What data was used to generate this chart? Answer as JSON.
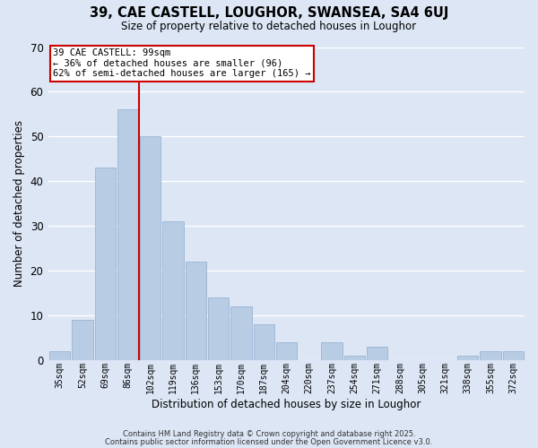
{
  "title": "39, CAE CASTELL, LOUGHOR, SWANSEA, SA4 6UJ",
  "subtitle": "Size of property relative to detached houses in Loughor",
  "xlabel": "Distribution of detached houses by size in Loughor",
  "ylabel": "Number of detached properties",
  "background_color": "#dce6f5",
  "bar_color": "#b8cce4",
  "bar_edge_color": "#9ab4d4",
  "grid_color": "#ffffff",
  "categories": [
    "35sqm",
    "52sqm",
    "69sqm",
    "86sqm",
    "102sqm",
    "119sqm",
    "136sqm",
    "153sqm",
    "170sqm",
    "187sqm",
    "204sqm",
    "220sqm",
    "237sqm",
    "254sqm",
    "271sqm",
    "288sqm",
    "305sqm",
    "321sqm",
    "338sqm",
    "355sqm",
    "372sqm"
  ],
  "values": [
    2,
    9,
    43,
    56,
    50,
    31,
    22,
    14,
    12,
    8,
    4,
    0,
    4,
    1,
    3,
    0,
    0,
    0,
    1,
    2,
    2
  ],
  "ylim": [
    0,
    70
  ],
  "yticks": [
    0,
    10,
    20,
    30,
    40,
    50,
    60,
    70
  ],
  "vline_x_index": 4,
  "vline_color": "#cc0000",
  "annotation_title": "39 CAE CASTELL: 99sqm",
  "annotation_line1": "← 36% of detached houses are smaller (96)",
  "annotation_line2": "62% of semi-detached houses are larger (165) →",
  "annotation_box_color": "#ffffff",
  "annotation_box_edge": "#cc0000",
  "footer1": "Contains HM Land Registry data © Crown copyright and database right 2025.",
  "footer2": "Contains public sector information licensed under the Open Government Licence v3.0."
}
